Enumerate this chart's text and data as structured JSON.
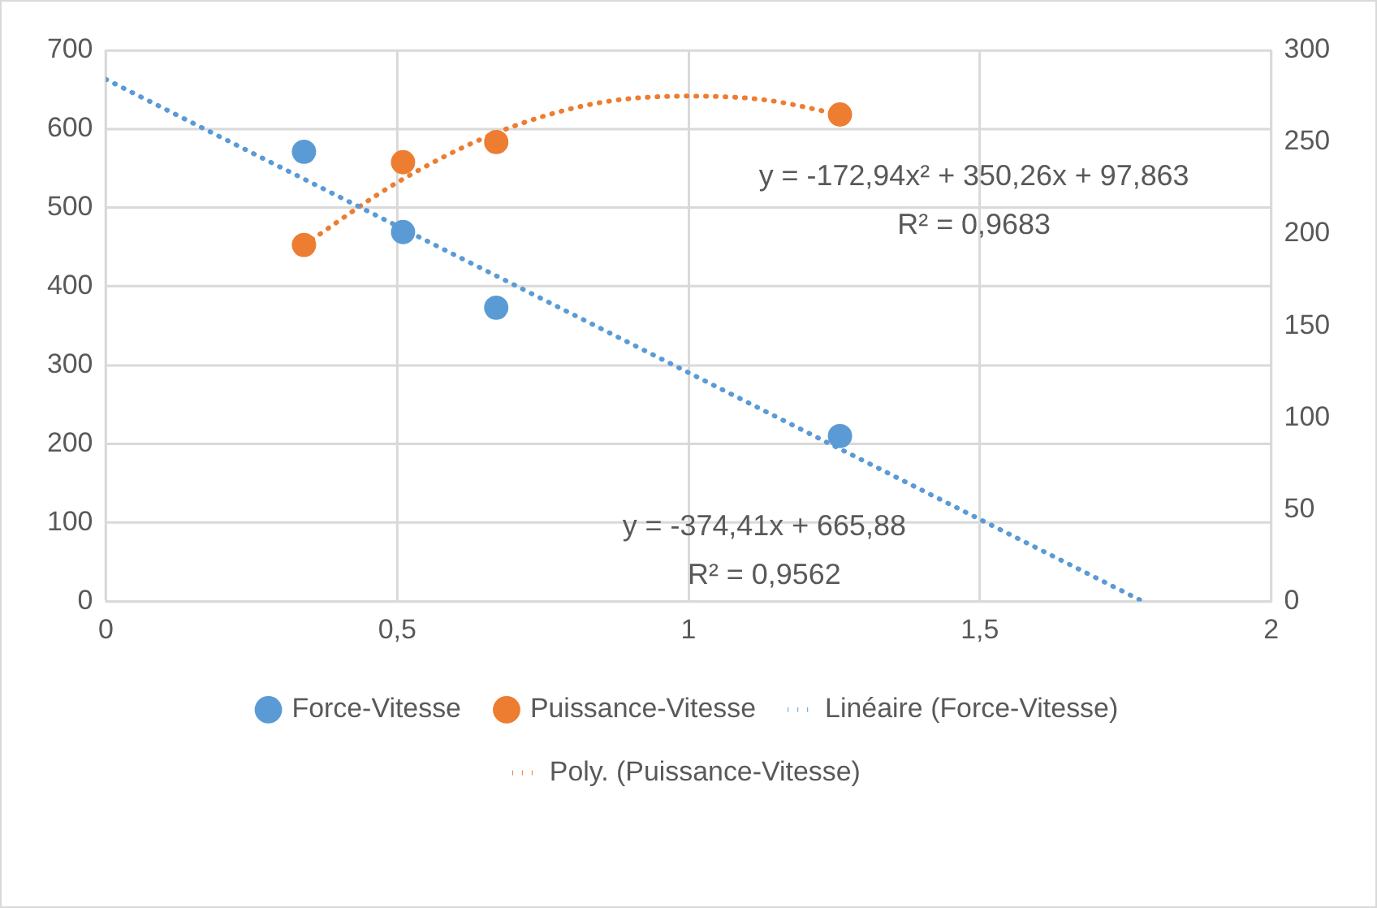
{
  "chart_data": {
    "type": "scatter",
    "series": [
      {
        "name": "Force-Vitesse",
        "color": "#5b9bd5",
        "x": [
          0.34,
          0.51,
          0.67,
          1.26
        ],
        "values": [
          571,
          469,
          373,
          210
        ],
        "marker": "circle"
      },
      {
        "name": "Puissance-Vitesse",
        "color": "#ed7d31",
        "axis": "y2",
        "x": [
          0.34,
          0.51,
          0.67,
          1.26
        ],
        "values": [
          194,
          239,
          250,
          265
        ],
        "marker": "circle"
      },
      {
        "name": "Linéaire (Force-Vitesse)",
        "type": "line",
        "color": "#5b9bd5",
        "x": [
          0,
          1.78
        ],
        "values": [
          663,
          0
        ],
        "marker": "none",
        "line_style": "dotted"
      },
      {
        "name": "Poly. (Puissance-Vitesse)",
        "type": "line",
        "color": "#ed7d31",
        "axis": "y2",
        "x": [
          0.34,
          0.5,
          0.67,
          0.84,
          1.0,
          1.13,
          1.26
        ],
        "values": [
          194,
          228,
          255,
          271,
          275,
          273,
          265
        ],
        "marker": "none",
        "line_style": "dotted"
      }
    ],
    "xlim": [
      0,
      2
    ],
    "xticks": [
      0,
      {
        "value": 0.5,
        "label": "0,5"
      },
      1,
      {
        "value": 1.5,
        "label": "1,5"
      },
      2
    ],
    "ylim": [
      0,
      700
    ],
    "yticks": [
      0,
      100,
      200,
      300,
      400,
      500,
      600,
      700
    ],
    "y2lim": [
      0,
      300
    ],
    "y2ticks": [
      0,
      50,
      100,
      150,
      200,
      250,
      300
    ],
    "grid": true,
    "legend": "bottom",
    "annotations": [
      "y = -172,94x² + 350,26x + 97,863",
      "R² = 0,9683",
      "y = -374,41x + 665,88",
      "R² = 0,9562"
    ]
  }
}
